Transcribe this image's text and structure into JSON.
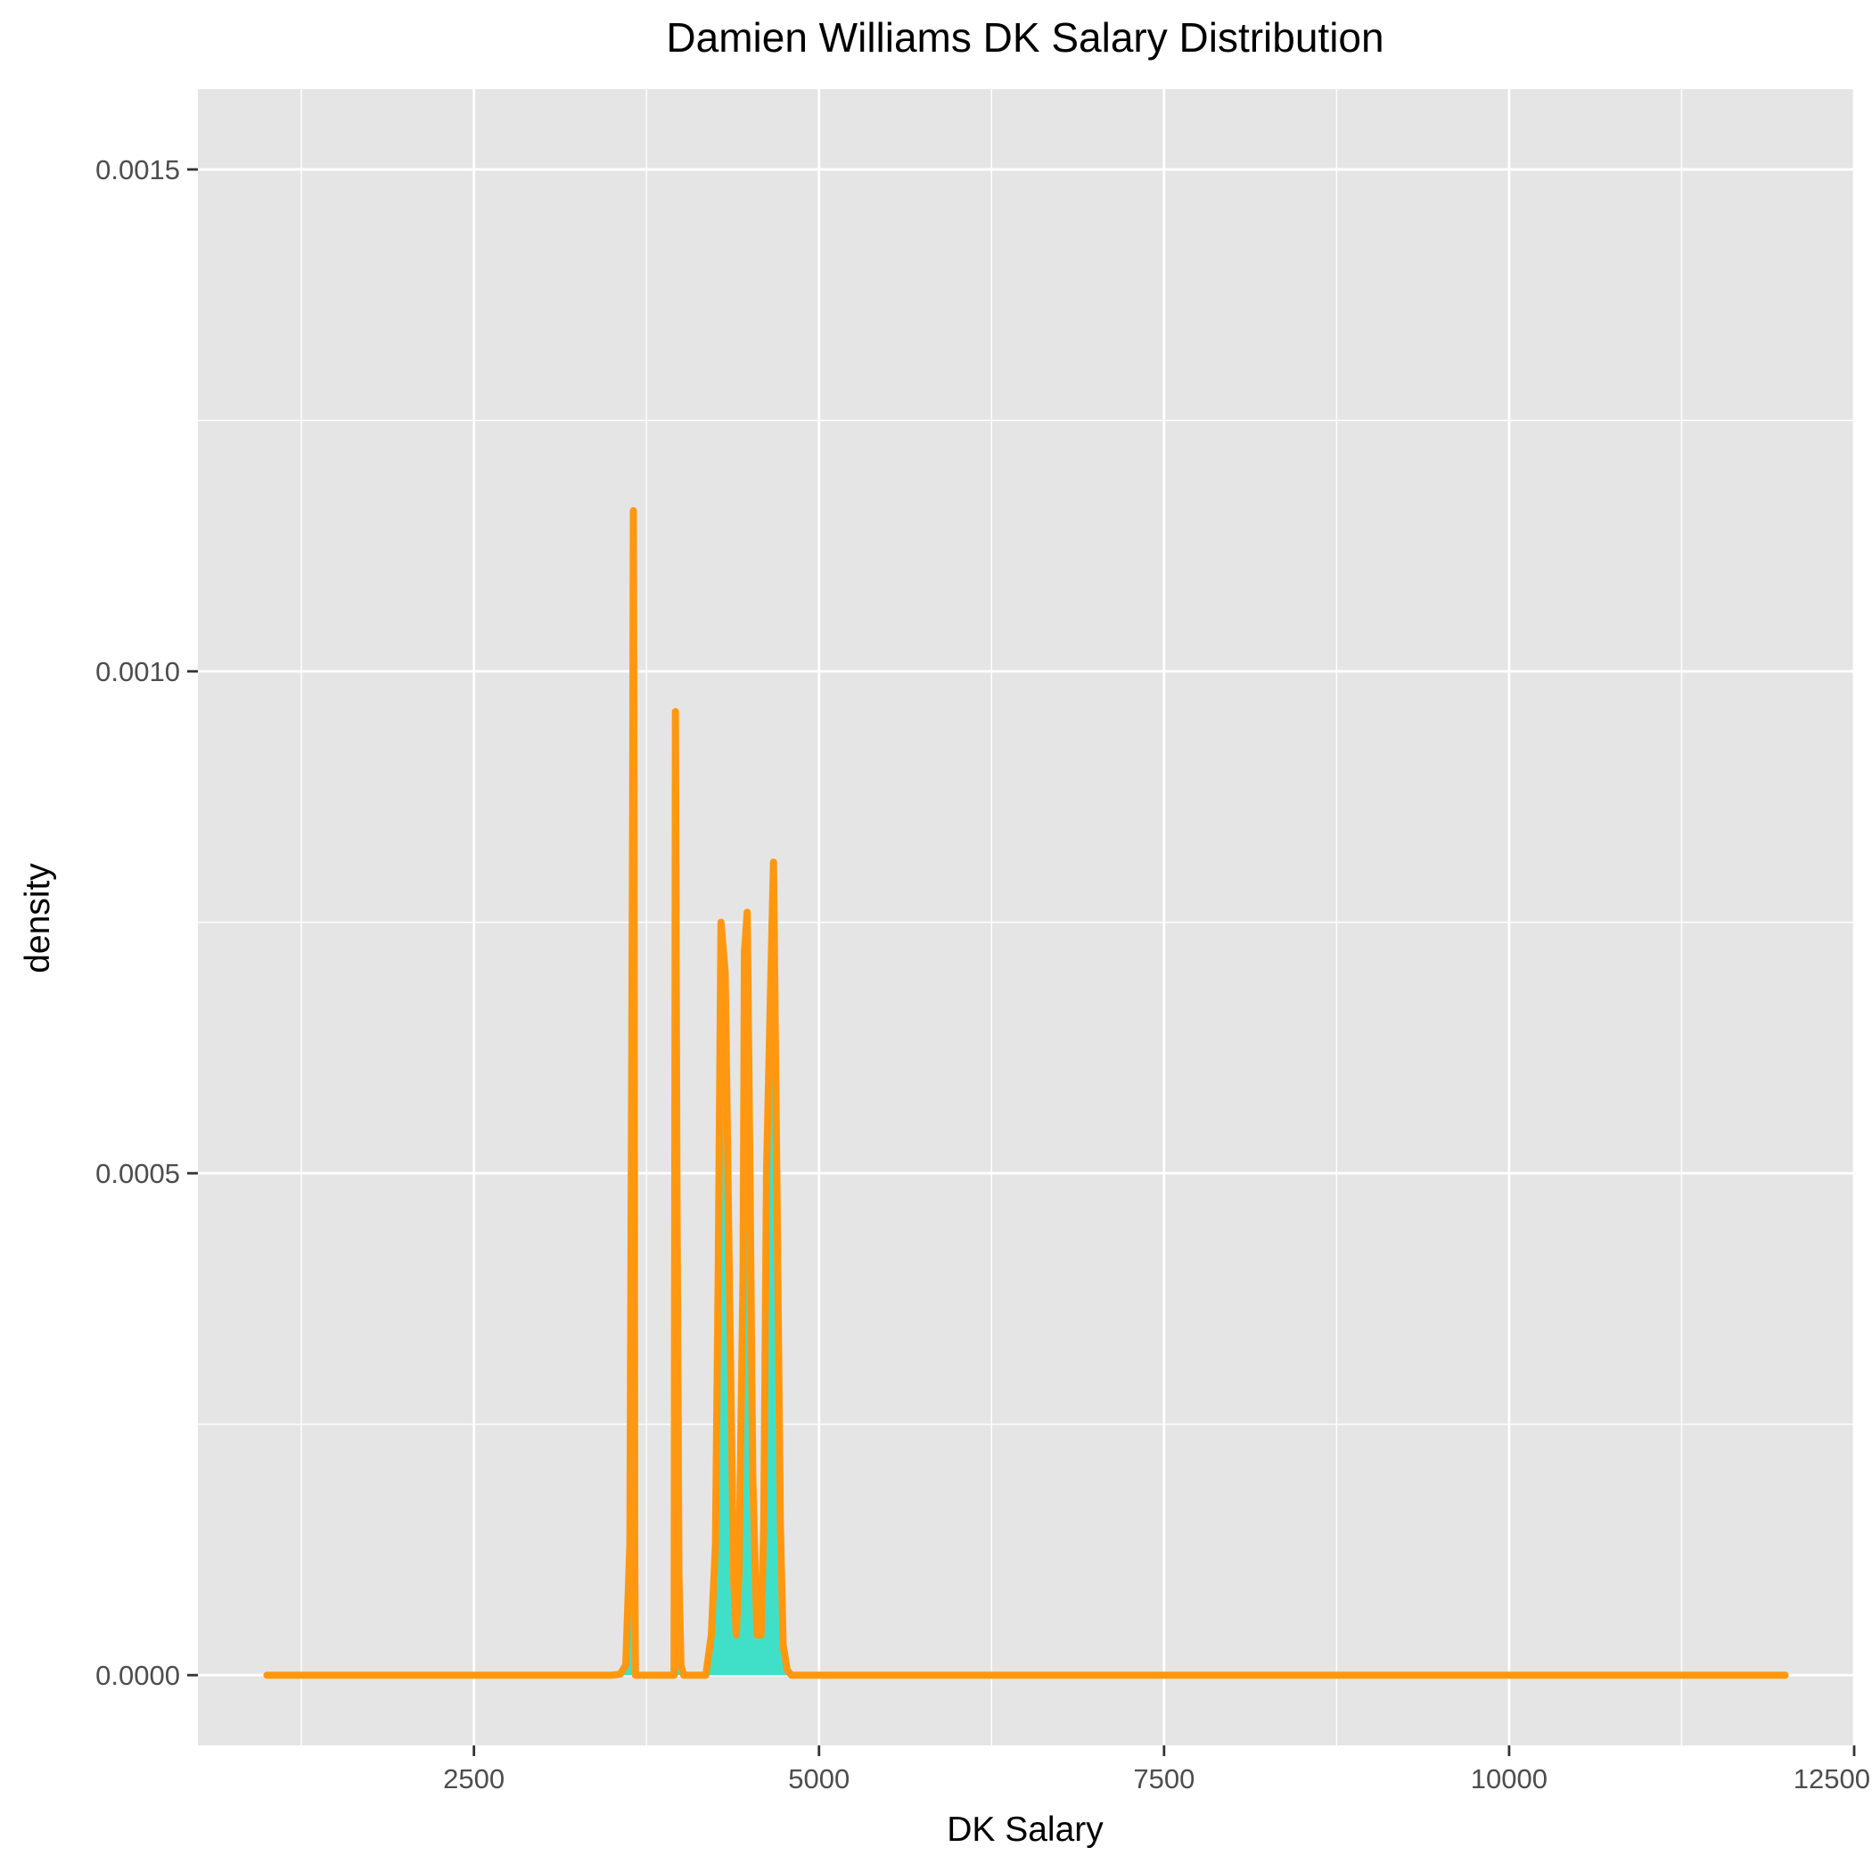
{
  "chart_data": {
    "type": "area",
    "title": "Damien Williams DK Salary Distribution",
    "xlabel": "DK Salary",
    "ylabel": "density",
    "xlim": [
      500,
      12500
    ],
    "ylim": [
      -7e-05,
      0.00158
    ],
    "x_ticks": [
      2500,
      5000,
      7500,
      10000,
      12500
    ],
    "x_tick_labels": [
      "2500",
      "5000",
      "7500",
      "10000",
      "12500"
    ],
    "y_ticks": [
      0.0,
      0.0005,
      0.001,
      0.0015
    ],
    "y_tick_labels": [
      "0.0000",
      "0.0005",
      "0.0010",
      "0.0015"
    ],
    "grid": true,
    "colors": {
      "panel_background": "#e5e5e5",
      "grid": "#ffffff",
      "line": "#ff9810",
      "fill": "#40e0c8",
      "tick_label": "#4d4d4d",
      "tick_mark": "#333333"
    },
    "series": [
      {
        "x": [
          1000,
          3500,
          3560,
          3600,
          3630,
          3650,
          3655,
          3660,
          3665,
          3670,
          3900,
          3950,
          3960,
          3970,
          3985,
          4000,
          4020,
          4040,
          4100,
          4150,
          4180,
          4220,
          4250,
          4270,
          4290,
          4320,
          4350,
          4380,
          4400,
          4420,
          4450,
          4460,
          4480,
          4500,
          4520,
          4550,
          4580,
          4600,
          4620,
          4650,
          4670,
          4690,
          4720,
          4740,
          4770,
          4800,
          4850,
          12000
        ],
        "y": [
          0,
          0,
          1e-06,
          1e-05,
          0.00013,
          0.00085,
          0.00116,
          0.00085,
          0.00013,
          0,
          0,
          0,
          0.00096,
          0.0005,
          0.0001,
          1e-05,
          0,
          0,
          0,
          0,
          0.0,
          4e-05,
          0.00013,
          0.0004,
          0.00075,
          0.0007,
          0.0004,
          0.0001,
          4e-05,
          0.0001,
          0.0004,
          0.00072,
          0.00076,
          0.0005,
          0.0002,
          4e-05,
          4e-05,
          0.00015,
          0.0005,
          0.00069,
          0.00081,
          0.00055,
          0.00015,
          3e-05,
          5e-06,
          0,
          0,
          0
        ]
      }
    ]
  }
}
